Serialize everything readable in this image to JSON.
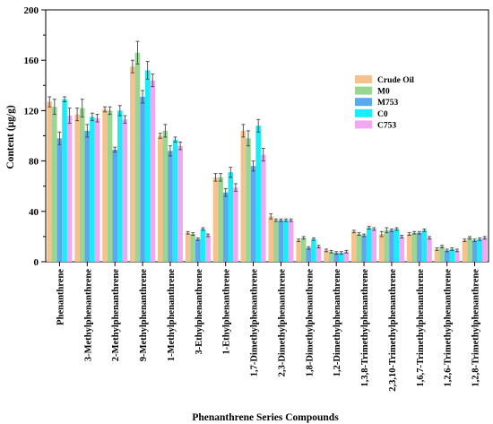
{
  "chart_data": {
    "type": "bar",
    "title": "",
    "xlabel": "Phenanthrene Series Compounds",
    "ylabel": "Content (μg/g)",
    "ylim": [
      0,
      200
    ],
    "yticks": [
      "0",
      "40",
      "80",
      "120",
      "160",
      "200"
    ],
    "grid": false,
    "legend_position": "top-right",
    "categories": [
      "Phenanthrene",
      "3-Methylphenanthrene",
      "2-Methylphenanthrene",
      "9-Methylphenanthrene",
      "1-Methylphenanthrene",
      "3-Ethylphenanthrene",
      "1-Ethylphenanthrene",
      "1,7-Dimethylphenanthrene",
      "2,3-Dimethylphenanthrene",
      "1,8-Dimethylphenanthrene",
      "1,2-Dimethylphenanthrene",
      "1,3,8-Trimethylphenanthrene",
      "2,3,10-Trimethylphenanthrene",
      "1,6,7-Trimethylphenanthrene",
      "1,2,6-Trimethylphenanthrene",
      "1,2,8-Trimethylphenanthrene"
    ],
    "series": [
      {
        "name": "Crude Oil",
        "color": "#f5c18c",
        "values": [
          127,
          117,
          121,
          155,
          100,
          23,
          67,
          104,
          36,
          17,
          9,
          24,
          22,
          22,
          10,
          17
        ],
        "errors": [
          4,
          5,
          2,
          5,
          2,
          1,
          3,
          5,
          2,
          1,
          1,
          1,
          2,
          1,
          1,
          1
        ]
      },
      {
        "name": "M0",
        "color": "#99d593",
        "values": [
          123,
          122,
          120,
          166,
          104,
          22,
          67,
          98,
          33,
          19,
          8,
          22,
          25,
          23,
          12,
          19
        ],
        "errors": [
          6,
          7,
          3,
          9,
          5,
          1,
          3,
          6,
          1,
          1,
          1,
          1,
          2,
          1,
          1,
          1
        ]
      },
      {
        "name": "M753",
        "color": "#5aa9ee",
        "values": [
          98,
          104,
          89,
          131,
          88,
          18,
          55,
          76,
          33,
          11,
          7,
          21,
          25,
          23,
          9,
          17
        ],
        "errors": [
          5,
          5,
          2,
          5,
          4,
          1,
          3,
          4,
          1,
          1,
          1,
          1,
          1,
          1,
          1,
          1
        ]
      },
      {
        "name": "C0",
        "color": "#19eef8",
        "values": [
          129,
          115,
          120,
          152,
          97,
          26,
          71,
          108,
          33,
          18,
          7,
          27,
          26,
          25,
          10,
          18
        ],
        "errors": [
          2,
          3,
          4,
          7,
          2,
          1,
          4,
          5,
          1,
          1,
          1,
          1,
          1,
          1,
          1,
          1
        ]
      },
      {
        "name": "C753",
        "color": "#f0a8f3",
        "values": [
          116,
          114,
          113,
          144,
          92,
          21,
          59,
          85,
          33,
          12,
          8,
          26,
          20,
          19,
          9,
          19
        ],
        "errors": [
          6,
          3,
          3,
          5,
          3,
          1,
          3,
          5,
          1,
          1,
          1,
          1,
          1,
          1,
          1,
          1
        ]
      }
    ]
  }
}
